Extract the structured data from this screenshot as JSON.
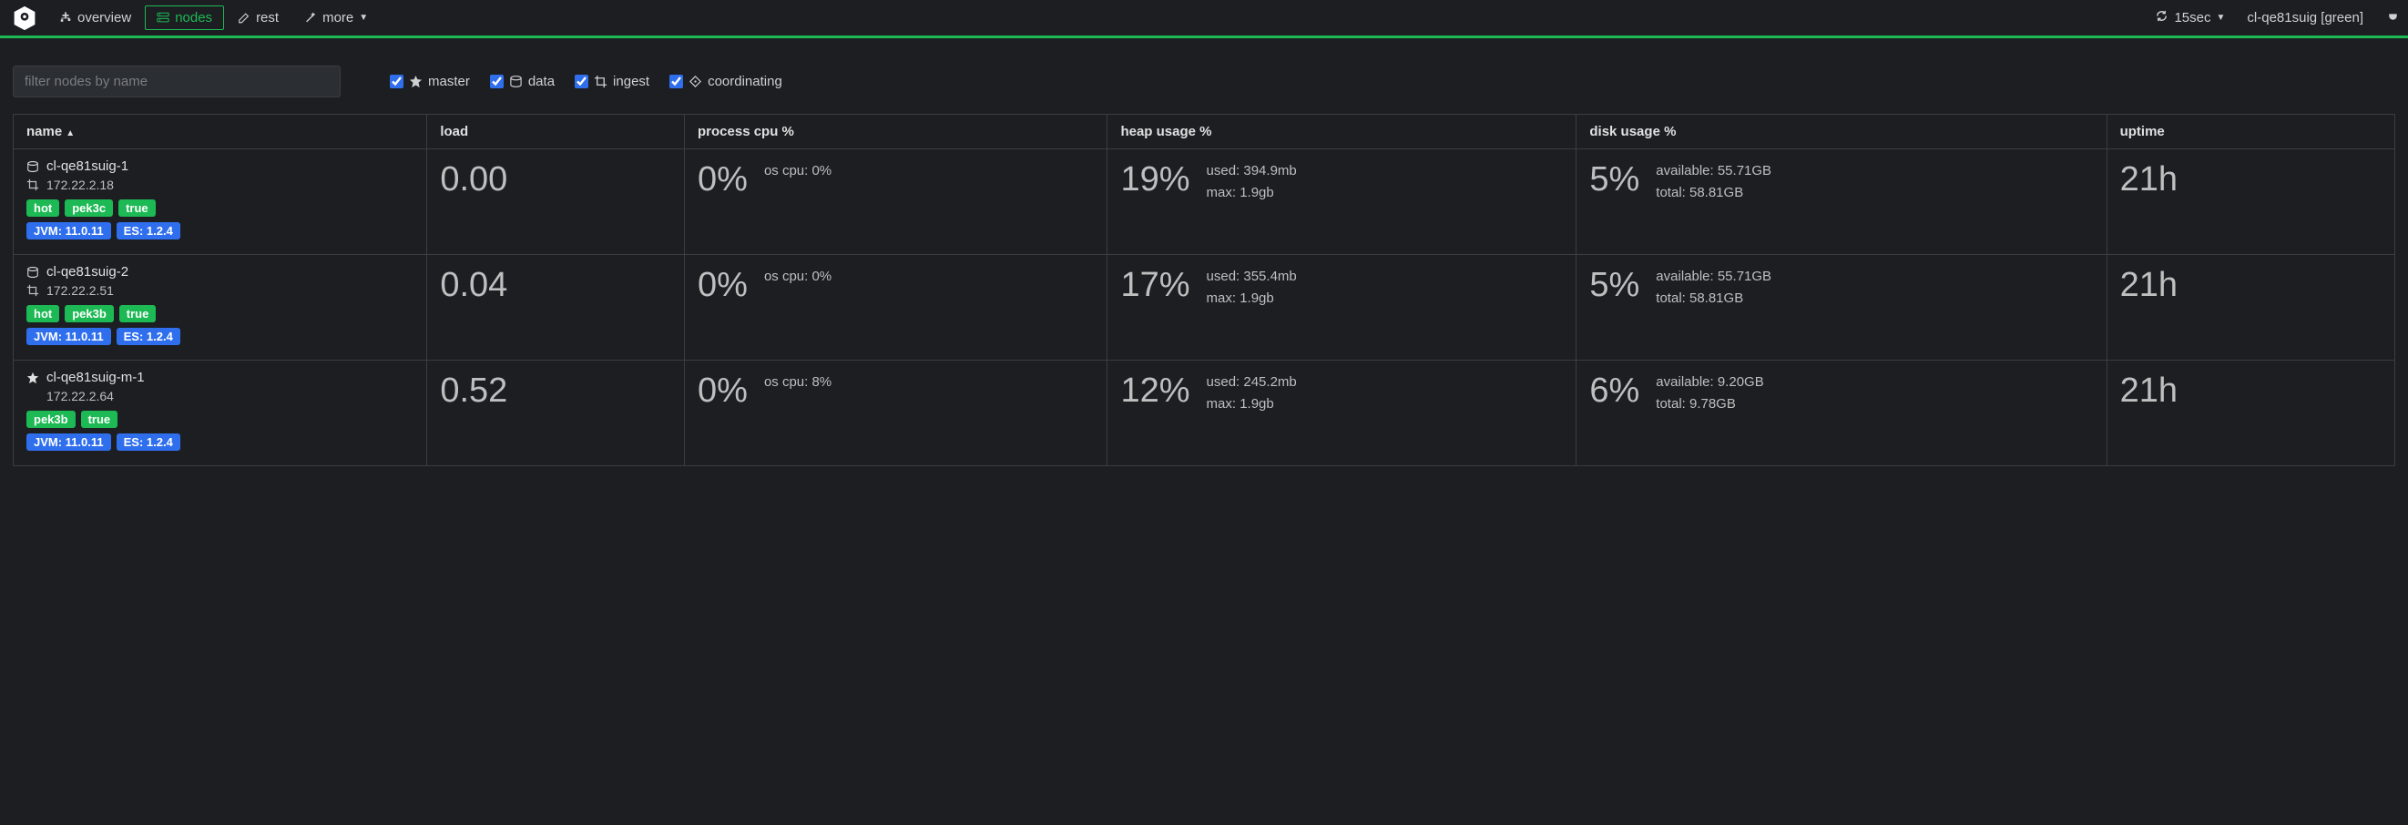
{
  "colors": {
    "bg": "#1c1e22",
    "border": "#3a3d42",
    "accent_green": "#1db954",
    "accent_blue": "#2f6fed",
    "text": "#d0d0d0",
    "text_dim": "#bfbfbf"
  },
  "nav": {
    "overview": "overview",
    "nodes": "nodes",
    "rest": "rest",
    "more": "more"
  },
  "top_right": {
    "refresh": "15sec",
    "cluster": "cl-qe81suig [green]"
  },
  "filter": {
    "placeholder": "filter nodes by name",
    "master": "master",
    "data": "data",
    "ingest": "ingest",
    "coordinating": "coordinating"
  },
  "columns": {
    "name": "name",
    "load": "load",
    "cpu": "process cpu %",
    "heap": "heap usage %",
    "disk": "disk usage %",
    "uptime": "uptime"
  },
  "rows": [
    {
      "name": "cl-qe81suig-1",
      "ip": "172.22.2.18",
      "role_primary": "data",
      "tags_green": [
        "hot",
        "pek3c",
        "true"
      ],
      "tags_blue": [
        "JVM: 11.0.11",
        "ES: 1.2.4"
      ],
      "load": "0.00",
      "cpu": "0%",
      "os_cpu": "os cpu: 0%",
      "heap": "19%",
      "heap_used": "used: 394.9mb",
      "heap_max": "max: 1.9gb",
      "disk": "5%",
      "disk_avail": "available: 55.71GB",
      "disk_total": "total: 58.81GB",
      "uptime": "21h"
    },
    {
      "name": "cl-qe81suig-2",
      "ip": "172.22.2.51",
      "role_primary": "data",
      "tags_green": [
        "hot",
        "pek3b",
        "true"
      ],
      "tags_blue": [
        "JVM: 11.0.11",
        "ES: 1.2.4"
      ],
      "load": "0.04",
      "cpu": "0%",
      "os_cpu": "os cpu: 0%",
      "heap": "17%",
      "heap_used": "used: 355.4mb",
      "heap_max": "max: 1.9gb",
      "disk": "5%",
      "disk_avail": "available: 55.71GB",
      "disk_total": "total: 58.81GB",
      "uptime": "21h"
    },
    {
      "name": "cl-qe81suig-m-1",
      "ip": "172.22.2.64",
      "role_primary": "master",
      "tags_green": [
        "pek3b",
        "true"
      ],
      "tags_blue": [
        "JVM: 11.0.11",
        "ES: 1.2.4"
      ],
      "load": "0.52",
      "cpu": "0%",
      "os_cpu": "os cpu: 8%",
      "heap": "12%",
      "heap_used": "used: 245.2mb",
      "heap_max": "max: 1.9gb",
      "disk": "6%",
      "disk_avail": "available: 9.20GB",
      "disk_total": "total: 9.78GB",
      "uptime": "21h"
    }
  ]
}
